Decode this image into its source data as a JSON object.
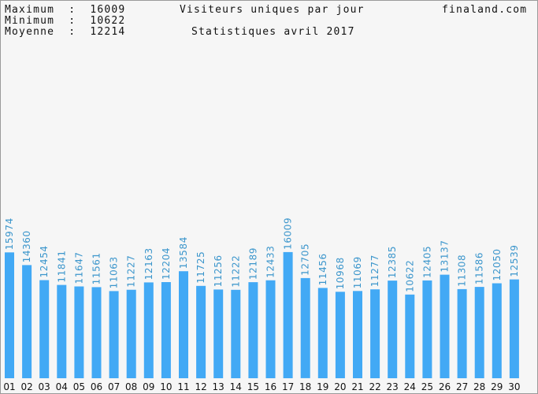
{
  "header": {
    "max_label": "Maximum  :  16009",
    "min_label": "Minimum  :  10622",
    "avg_label": "Moyenne  :  12214",
    "title": "Visiteurs uniques par jour",
    "subtitle": "Statistiques avril 2017",
    "site": "finaland.com"
  },
  "chart_data": {
    "type": "bar",
    "title": "Visiteurs uniques par jour",
    "subtitle": "Statistiques avril 2017",
    "categories": [
      "01",
      "02",
      "03",
      "04",
      "05",
      "06",
      "07",
      "08",
      "09",
      "10",
      "11",
      "12",
      "13",
      "14",
      "15",
      "16",
      "17",
      "18",
      "19",
      "20",
      "21",
      "22",
      "23",
      "24",
      "25",
      "26",
      "27",
      "28",
      "29",
      "30"
    ],
    "values": [
      15974,
      14360,
      12454,
      11841,
      11647,
      11561,
      11063,
      11227,
      12163,
      12204,
      13584,
      11725,
      11256,
      11222,
      12189,
      12433,
      16009,
      12705,
      11456,
      10968,
      11069,
      11277,
      12385,
      10622,
      12405,
      13137,
      11308,
      11586,
      12050,
      12539
    ],
    "ylim": [
      0,
      37000
    ],
    "bar_color": "#42a9f5",
    "label_color": "#3c96cc",
    "xlabel": "",
    "ylabel": ""
  }
}
